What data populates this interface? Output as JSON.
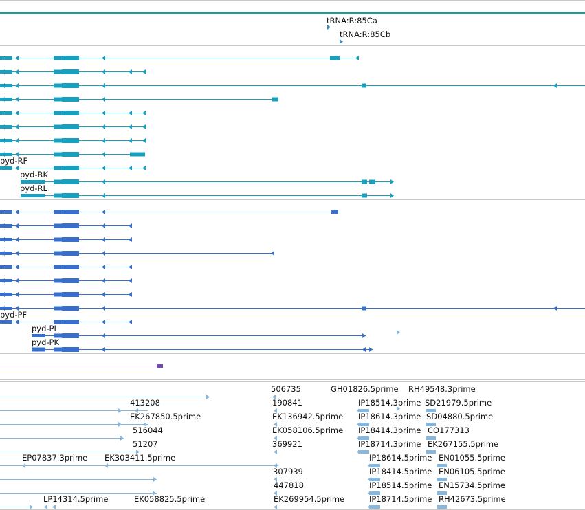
{
  "colors": {
    "divider": "#c8c8c8",
    "scale_bar": "#3a8f90",
    "trna": "#3d8ebd",
    "transcripts_a": "#1aa0bf",
    "transcripts_b": "#3a6fc9",
    "ncrna": "#6f4fa6",
    "ests": "#86b8df"
  },
  "trna_track": {
    "features": [
      "tRNA:R:85Ca",
      "tRNA:R:85Cb"
    ]
  },
  "transcripts_a": {
    "labels": [
      "pyd-RF",
      "pyd-RK",
      "pyd-RL"
    ]
  },
  "transcripts_b": {
    "labels": [
      "pyd-PF",
      "pyd-PL",
      "pyd-PK"
    ]
  },
  "est_track": {
    "labels": [
      "506735",
      "GH01826.5prime",
      "RH49548.3prime",
      "413208",
      "190841",
      "IP18514.3prime",
      "SD21979.5prime",
      "EK267850.5prime",
      "EK136942.5prime",
      "IP18614.3prime",
      "SD04880.5prime",
      "516044",
      "EK058106.5prime",
      "IP18414.3prime",
      "CO177313",
      "51207",
      "369921",
      "IP18714.3prime",
      "EK267155.5prime",
      "EP07837.3prime",
      "EK303411.5prime",
      "IP18614.5prime",
      "EN01055.5prime",
      "307939",
      "IP18414.5prime",
      "EN06105.5prime",
      "447818",
      "IP18514.5prime",
      "EN15734.5prime",
      "LP14314.5prime",
      "EK058825.5prime",
      "EK269954.5prime",
      "IP18714.5prime",
      "RH42673.5prime"
    ]
  }
}
